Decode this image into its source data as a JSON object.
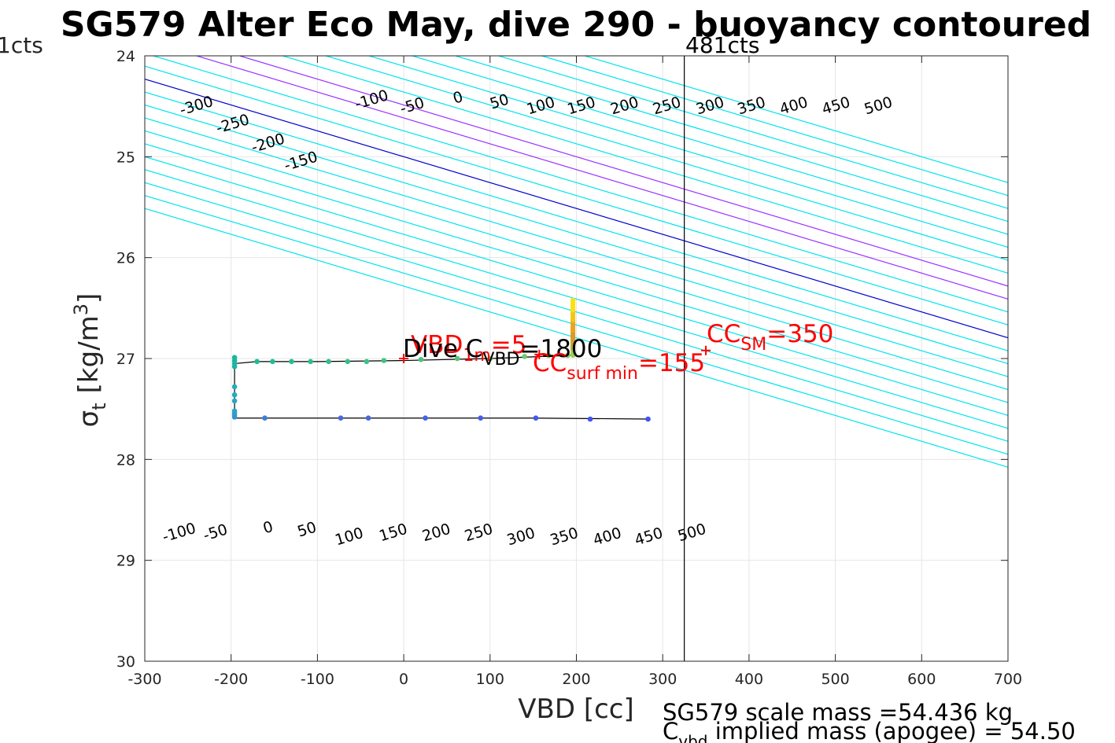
{
  "chart_data": {
    "type": "line",
    "title": "SG579 Alter Eco May, dive 290 - buoyancy contoured",
    "xlabel": "VBD [cc]",
    "ylabel_base": "σ",
    "ylabel_sub": "t",
    "ylabel_unit": "[kg/m",
    "ylabel_sup": "3",
    "ylabel_close": "]",
    "xlim": [
      -300,
      700
    ],
    "ylim": [
      24,
      30
    ],
    "y_reversed": true,
    "grid": true,
    "xticks": [
      -300,
      -200,
      -100,
      0,
      100,
      200,
      300,
      400,
      500,
      600,
      700
    ],
    "yticks": [
      24,
      25,
      26,
      27,
      28,
      29,
      30
    ],
    "xtick_labels": [
      "-300",
      "-200",
      "-100",
      "0",
      "100",
      "200",
      "300",
      "400",
      "500",
      "600",
      "700"
    ],
    "ytick_labels": [
      "24",
      "25",
      "26",
      "27",
      "28",
      "29",
      "30"
    ],
    "top_left_label": "1cts",
    "top_right_label": "481cts",
    "vertical_line_x": 325,
    "contour_slope_cc_per_sigma": 390,
    "contours": [
      {
        "level": -500,
        "x_at_25": -500,
        "color": "#00e5ee"
      },
      {
        "level": -450,
        "x_at_25": -450,
        "color": "#00e5ee"
      },
      {
        "level": -400,
        "x_at_25": -400,
        "color": "#00e5ee"
      },
      {
        "level": -350,
        "x_at_25": -350,
        "color": "#00e5ee"
      },
      {
        "level": -300,
        "x_at_25": -300,
        "color": "#00e5ee"
      },
      {
        "level": -250,
        "x_at_25": -250,
        "color": "#00e5ee"
      },
      {
        "level": -200,
        "x_at_25": -200,
        "color": "#00e5ee"
      },
      {
        "level": -150,
        "x_at_25": -150,
        "color": "#00e5ee"
      },
      {
        "level": -100,
        "x_at_25": -100,
        "color": "#00e5ee"
      },
      {
        "level": -50,
        "x_at_25": -50,
        "color": "#00e5ee"
      },
      {
        "level": 0,
        "x_at_25": 0,
        "color": "#0000cc"
      },
      {
        "level": 50,
        "x_at_25": 50,
        "color": "#00e5ee"
      },
      {
        "level": 100,
        "x_at_25": 100,
        "color": "#00e5ee"
      },
      {
        "level": 150,
        "x_at_25": 150,
        "color": "#9933ff"
      },
      {
        "level": 200,
        "x_at_25": 200,
        "color": "#9933ff"
      },
      {
        "level": 250,
        "x_at_25": 250,
        "color": "#00e5ee"
      },
      {
        "level": 300,
        "x_at_25": 300,
        "color": "#00e5ee"
      },
      {
        "level": 350,
        "x_at_25": 350,
        "color": "#00e5ee"
      },
      {
        "level": 400,
        "x_at_25": 400,
        "color": "#00e5ee"
      },
      {
        "level": 450,
        "x_at_25": 450,
        "color": "#00e5ee"
      },
      {
        "level": 500,
        "x_at_25": 500,
        "color": "#00e5ee"
      },
      {
        "level": 550,
        "x_at_25": 550,
        "color": "#00e5ee"
      },
      {
        "level": 600,
        "x_at_25": 600,
        "color": "#00e5ee"
      }
    ],
    "top_contour_labels": [
      {
        "text": "-300",
        "x": -240,
        "y": 24.5
      },
      {
        "text": "-250",
        "x": -198,
        "y": 24.68
      },
      {
        "text": "-200",
        "x": -157,
        "y": 24.87
      },
      {
        "text": "-150",
        "x": -119,
        "y": 25.05
      },
      {
        "text": "-100",
        "x": -37,
        "y": 24.44
      },
      {
        "text": "-50",
        "x": 10,
        "y": 24.5
      },
      {
        "text": "0",
        "x": 63,
        "y": 24.42
      },
      {
        "text": "50",
        "x": 111,
        "y": 24.46
      },
      {
        "text": "100",
        "x": 159,
        "y": 24.5
      },
      {
        "text": "150",
        "x": 206,
        "y": 24.5
      },
      {
        "text": "200",
        "x": 256,
        "y": 24.5
      },
      {
        "text": "250",
        "x": 305,
        "y": 24.5
      },
      {
        "text": "300",
        "x": 355,
        "y": 24.5
      },
      {
        "text": "350",
        "x": 403,
        "y": 24.5
      },
      {
        "text": "400",
        "x": 452,
        "y": 24.5
      },
      {
        "text": "450",
        "x": 501,
        "y": 24.5
      },
      {
        "text": "500",
        "x": 550,
        "y": 24.5
      }
    ],
    "bottom_contour_labels": [
      {
        "text": "-100",
        "x": -260,
        "y": 28.73
      },
      {
        "text": "-50",
        "x": -218,
        "y": 28.73
      },
      {
        "text": "0",
        "x": -157,
        "y": 28.68
      },
      {
        "text": "50",
        "x": -112,
        "y": 28.7
      },
      {
        "text": "100",
        "x": -63,
        "y": 28.77
      },
      {
        "text": "150",
        "x": -12,
        "y": 28.73
      },
      {
        "text": "200",
        "x": 38,
        "y": 28.73
      },
      {
        "text": "250",
        "x": 87,
        "y": 28.73
      },
      {
        "text": "300",
        "x": 136,
        "y": 28.77
      },
      {
        "text": "350",
        "x": 186,
        "y": 28.77
      },
      {
        "text": "400",
        "x": 236,
        "y": 28.77
      },
      {
        "text": "450",
        "x": 284,
        "y": 28.77
      },
      {
        "text": "500",
        "x": 334,
        "y": 28.73
      }
    ],
    "track_line": [
      {
        "x": -196,
        "y": 27.05
      },
      {
        "x": -170,
        "y": 27.03
      },
      {
        "x": -100,
        "y": 27.03
      },
      {
        "x": 0,
        "y": 27.02
      },
      {
        "x": 100,
        "y": 27.0
      },
      {
        "x": 190,
        "y": 26.97
      },
      {
        "x": 196,
        "y": 26.96
      }
    ],
    "track_line_bottom": [
      {
        "x": -196,
        "y": 27.59
      },
      {
        "x": 0,
        "y": 27.59
      },
      {
        "x": 150,
        "y": 27.59
      },
      {
        "x": 283,
        "y": 27.6
      }
    ],
    "track_vertical": [
      {
        "x": -196,
        "y": 27.0
      },
      {
        "x": -196,
        "y": 27.6
      }
    ],
    "points": [
      {
        "x": 283,
        "y": 27.6,
        "color": "#4053f0"
      },
      {
        "x": 216,
        "y": 27.6,
        "color": "#4155ee"
      },
      {
        "x": 153,
        "y": 27.59,
        "color": "#4158ec"
      },
      {
        "x": 89,
        "y": 27.59,
        "color": "#425de8"
      },
      {
        "x": 25,
        "y": 27.59,
        "color": "#4462e4"
      },
      {
        "x": -41,
        "y": 27.59,
        "color": "#4667e0"
      },
      {
        "x": -73,
        "y": 27.59,
        "color": "#476adc"
      },
      {
        "x": -161,
        "y": 27.59,
        "color": "#3a7fd8"
      },
      {
        "x": -196,
        "y": 27.58,
        "color": "#2f90d4"
      },
      {
        "x": -196,
        "y": 27.56,
        "color": "#2f96d0"
      },
      {
        "x": -196,
        "y": 27.54,
        "color": "#2f9ccc"
      },
      {
        "x": -196,
        "y": 27.52,
        "color": "#2fa2c8"
      },
      {
        "x": -196,
        "y": 27.42,
        "color": "#2aa6c2"
      },
      {
        "x": -196,
        "y": 27.36,
        "color": "#25aabd"
      },
      {
        "x": -196,
        "y": 27.28,
        "color": "#20aeb8"
      },
      {
        "x": -196,
        "y": 27.08,
        "color": "#1cb3a8"
      },
      {
        "x": -196,
        "y": 27.05,
        "color": "#1ab6a2"
      },
      {
        "x": -196,
        "y": 27.02,
        "color": "#19b79f"
      },
      {
        "x": -196,
        "y": 26.99,
        "color": "#18b89c"
      },
      {
        "x": -170,
        "y": 27.03,
        "color": "#1dba98"
      },
      {
        "x": -152,
        "y": 27.03,
        "color": "#22bc95"
      },
      {
        "x": -130,
        "y": 27.03,
        "color": "#27bd92"
      },
      {
        "x": -108,
        "y": 27.03,
        "color": "#2cbe8f"
      },
      {
        "x": -87,
        "y": 27.03,
        "color": "#31bf8c"
      },
      {
        "x": -65,
        "y": 27.03,
        "color": "#36c089"
      },
      {
        "x": -43,
        "y": 27.03,
        "color": "#3bc186"
      },
      {
        "x": -23,
        "y": 27.02,
        "color": "#40c283"
      },
      {
        "x": 20,
        "y": 27.01,
        "color": "#4ac47d"
      },
      {
        "x": 62,
        "y": 27.0,
        "color": "#54c677"
      },
      {
        "x": 100,
        "y": 27.0,
        "color": "#62c870"
      },
      {
        "x": 140,
        "y": 26.98,
        "color": "#70ca69"
      },
      {
        "x": 168,
        "y": 26.97,
        "color": "#80cc62"
      },
      {
        "x": 190,
        "y": 26.97,
        "color": "#8fce5a"
      }
    ],
    "vertical_bar": {
      "x": 196,
      "segments": [
        {
          "y1": 26.97,
          "y2": 26.9,
          "color": "#9acf55"
        },
        {
          "y1": 26.9,
          "y2": 26.82,
          "color": "#c0a630"
        },
        {
          "y1": 26.82,
          "y2": 26.72,
          "color": "#d89a2a"
        },
        {
          "y1": 26.72,
          "y2": 26.62,
          "color": "#e8a523"
        },
        {
          "y1": 26.62,
          "y2": 26.52,
          "color": "#f3c51a"
        },
        {
          "y1": 26.52,
          "y2": 26.42,
          "color": "#fbe114"
        }
      ]
    },
    "markers": [
      {
        "x": 0,
        "y": 27.0,
        "symbol": "+",
        "color": "#ff0000"
      },
      {
        "x": 157,
        "y": 26.96,
        "symbol": "+",
        "color": "#ff0000"
      },
      {
        "x": 350,
        "y": 26.92,
        "symbol": "+",
        "color": "#ff0000"
      }
    ]
  },
  "annotations": {
    "vbd_1m_main": "VBD",
    "vbd_1m_sub": "1m",
    "vbd_1m_value": "=5",
    "dive_label": "Dive C",
    "dive_sub": "VBD",
    "dive_value": "=1800",
    "cc_surf_main": "CC",
    "cc_surf_sub": "surf min",
    "cc_surf_value": "=155",
    "cc_sm_main": "CC",
    "cc_sm_sub": "SM",
    "cc_sm_value": "=350"
  },
  "footer": {
    "line1": "SG579 scale mass =54.436 kg",
    "line2_main": "C",
    "line2_sub": "vbd",
    "line2_rest": " implied mass (apogee) = 54.50"
  },
  "colors": {
    "contour_cyan": "#00e5ee",
    "contour_zero": "#0000cc",
    "contour_purple": "#9933ff",
    "annotation_red": "#ff0000",
    "grid": "#e6e6e6"
  }
}
